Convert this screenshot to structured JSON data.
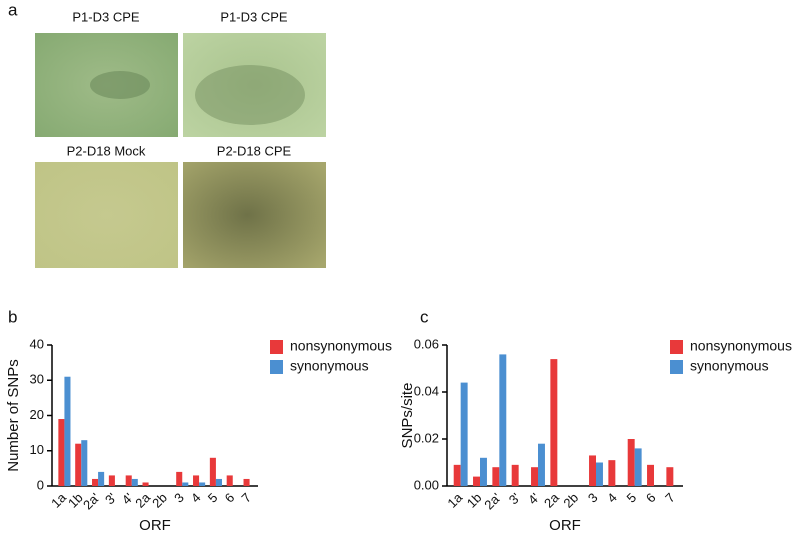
{
  "panels": [
    "a",
    "b",
    "c"
  ],
  "images": [
    "P1-D3 CPE",
    "P1-D3 CPE",
    "P2-D18 Mock",
    "P2-D18 CPE"
  ],
  "chart_data": [
    {
      "type": "bar",
      "ylabel": "Number of SNPs",
      "xlabel": "ORF",
      "categories": [
        "1a",
        "1b",
        "2a'",
        "3'",
        "4'",
        "2a",
        "2b",
        "3",
        "4",
        "5",
        "6",
        "7"
      ],
      "series": [
        {
          "name": "nonsynonymous",
          "color": "#e8393a",
          "values": [
            19,
            12,
            2,
            3,
            3,
            1,
            0,
            4,
            3,
            8,
            3,
            2
          ]
        },
        {
          "name": "synonymous",
          "color": "#4b8fd1",
          "values": [
            31,
            13,
            4,
            0,
            2,
            0,
            0,
            1,
            1,
            2,
            0,
            0
          ]
        }
      ],
      "ylim": [
        0,
        40
      ],
      "yticks": [
        0,
        10,
        20,
        30,
        40
      ]
    },
    {
      "type": "bar",
      "ylabel": "SNPs/site",
      "xlabel": "ORF",
      "categories": [
        "1a",
        "1b",
        "2a'",
        "3'",
        "4'",
        "2a",
        "2b",
        "3",
        "4",
        "5",
        "6",
        "7"
      ],
      "series": [
        {
          "name": "nonsynonymous",
          "color": "#e8393a",
          "values": [
            0.009,
            0.004,
            0.008,
            0.009,
            0.008,
            0.054,
            0,
            0.013,
            0.011,
            0.02,
            0.009,
            0.008
          ]
        },
        {
          "name": "synonymous",
          "color": "#4b8fd1",
          "values": [
            0.044,
            0.012,
            0.056,
            0,
            0.018,
            0,
            0,
            0.01,
            0,
            0.016,
            0,
            0
          ]
        }
      ],
      "ylim": [
        0,
        0.06
      ],
      "yticks": [
        {
          "value": 0,
          "label": "0.00"
        },
        0.02,
        0.04,
        0.06
      ]
    }
  ]
}
